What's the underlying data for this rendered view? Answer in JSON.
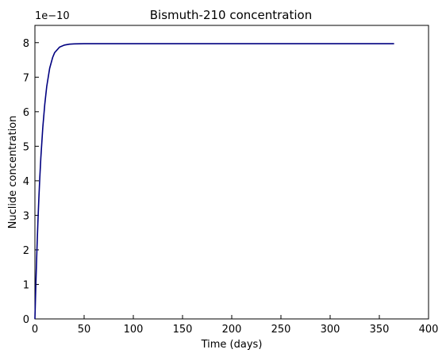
{
  "chart_data": {
    "type": "line",
    "title": "Bismuth-210 concentration",
    "xlabel": "Time (days)",
    "ylabel": "Nuclide concentration",
    "y_offset_text": "1e−10",
    "xlim": [
      0,
      400
    ],
    "ylim": [
      0,
      8.5
    ],
    "y_unit_multiplier": 1e-10,
    "x_ticks": [
      0,
      50,
      100,
      150,
      200,
      250,
      300,
      350,
      400
    ],
    "y_ticks": [
      0,
      1,
      2,
      3,
      4,
      5,
      6,
      7,
      8
    ],
    "grid": false,
    "series": [
      {
        "color": "#000080",
        "x": [
          0,
          1,
          2,
          3,
          4,
          5,
          6,
          8,
          10,
          12,
          15,
          18,
          20,
          25,
          30,
          35,
          40,
          45,
          50,
          60,
          80,
          100,
          150,
          200,
          250,
          300,
          365
        ],
        "y": [
          0,
          1.05,
          1.97,
          2.78,
          3.49,
          4.11,
          4.66,
          5.54,
          6.21,
          6.73,
          7.26,
          7.57,
          7.71,
          7.87,
          7.93,
          7.955,
          7.965,
          7.968,
          7.97,
          7.97,
          7.97,
          7.97,
          7.97,
          7.97,
          7.97,
          7.97,
          7.97
        ]
      }
    ]
  }
}
